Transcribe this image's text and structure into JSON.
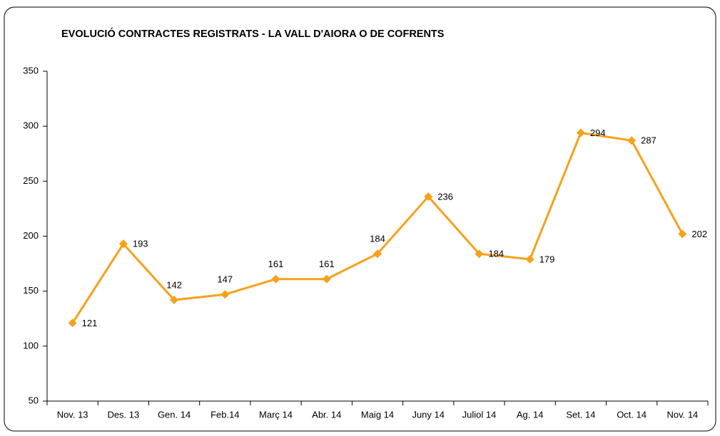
{
  "chart_data": {
    "type": "line",
    "title": "EVOLUCIÓ CONTRACTES REGISTRATS - LA VALL D'AIORA O DE COFRENTS",
    "categories": [
      "Nov. 13",
      "Des. 13",
      "Gen. 14",
      "Feb.14",
      "Març 14",
      "Abr. 14",
      "Maig 14",
      "Juny 14",
      "Juliol 14",
      "Ag. 14",
      "Set. 14",
      "Oct. 14",
      "Nov. 14"
    ],
    "values": [
      121,
      193,
      142,
      147,
      161,
      161,
      184,
      236,
      184,
      179,
      294,
      287,
      202
    ],
    "color": "#f7a11a",
    "ylim": [
      50,
      350
    ],
    "yticks": [
      50,
      100,
      150,
      200,
      250,
      300,
      350
    ],
    "grid": false
  }
}
